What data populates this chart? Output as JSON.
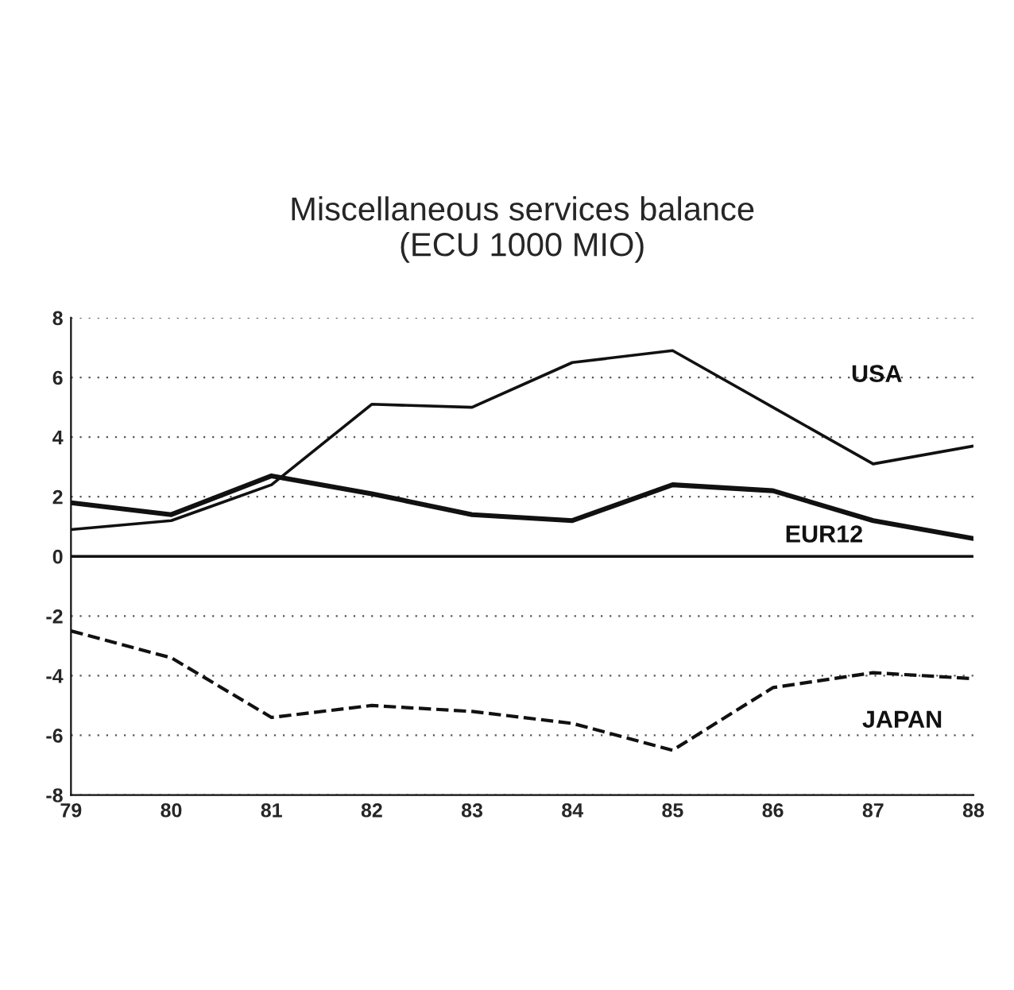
{
  "chart_data": {
    "type": "line",
    "title": "Miscellaneous services balance\n(ECU 1000 MIO)",
    "x": [
      79,
      80,
      81,
      82,
      83,
      84,
      85,
      86,
      87,
      88
    ],
    "series": [
      {
        "name": "USA",
        "color": "#111111",
        "line_style": "solid",
        "values": [
          0.9,
          1.2,
          2.4,
          5.1,
          5.0,
          6.5,
          6.9,
          5.0,
          3.1,
          3.7
        ]
      },
      {
        "name": "EUR12",
        "color": "#111111",
        "line_style": "solid",
        "values": [
          1.8,
          1.4,
          2.7,
          2.1,
          1.4,
          1.2,
          2.4,
          2.2,
          1.2,
          0.6
        ]
      },
      {
        "name": "JAPAN",
        "color": "#111111",
        "line_style": "dashed",
        "values": [
          -2.5,
          -3.4,
          -5.4,
          -5.0,
          -5.2,
          -5.6,
          -6.5,
          -4.4,
          -3.9,
          -4.1
        ]
      }
    ],
    "xlim": [
      79,
      88
    ],
    "xticks": [
      79,
      80,
      81,
      82,
      83,
      84,
      85,
      86,
      87,
      88
    ],
    "ylim": [
      -8,
      8
    ],
    "yticks": [
      -8,
      -6,
      -4,
      -2,
      0,
      2,
      4,
      6,
      8
    ],
    "ref_lines": [
      {
        "axis": "y",
        "value": 0,
        "color": "#111111",
        "line_style": "solid"
      }
    ],
    "grid": "y",
    "marker": "none"
  }
}
